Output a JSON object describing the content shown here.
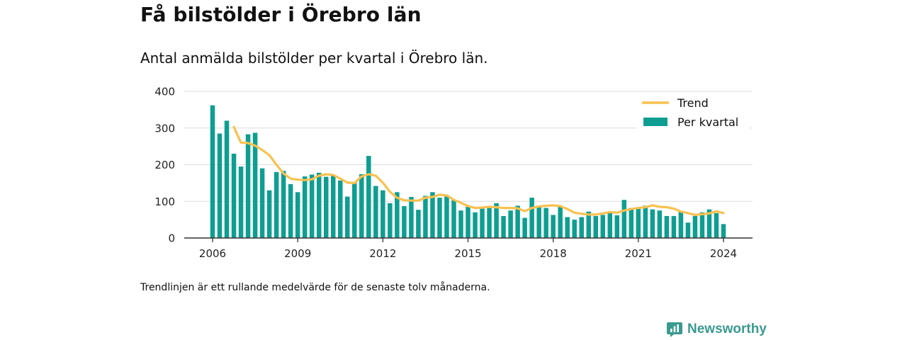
{
  "header": {
    "title": "Få bilstölder i Örebro län",
    "subtitle": "Antal anmälda bilstölder per kvartal i Örebro län."
  },
  "footnote": "Trendlinjen är ett rullande medelvärde för de senaste tolv månaderna.",
  "brand": {
    "name": "Newsworthy",
    "icon": "newsworthy-logo-icon"
  },
  "colors": {
    "bars": "#0e9e91",
    "trend": "#f8c150",
    "grid": "#dcdcdc",
    "axis": "#333333"
  },
  "chart_data": {
    "type": "bar",
    "grid": true,
    "legend_placement": "top-right",
    "legend": [
      {
        "label": "Trend",
        "kind": "line"
      },
      {
        "label": "Per kvartal",
        "kind": "bar"
      }
    ],
    "y_ticks": [
      0,
      100,
      200,
      300,
      400
    ],
    "ylim": [
      0,
      400
    ],
    "x_ticks": [
      "2006",
      "2009",
      "2012",
      "2015",
      "2018",
      "2021",
      "2024"
    ],
    "start_year": 2006,
    "series": [
      {
        "name": "Per kvartal",
        "type": "bar",
        "values": [
          362,
          285,
          320,
          230,
          195,
          283,
          287,
          190,
          130,
          180,
          183,
          147,
          125,
          168,
          173,
          178,
          167,
          170,
          157,
          113,
          150,
          174,
          224,
          142,
          130,
          95,
          125,
          87,
          112,
          77,
          115,
          125,
          110,
          117,
          103,
          75,
          85,
          70,
          80,
          82,
          95,
          60,
          75,
          88,
          55,
          110,
          88,
          82,
          63,
          88,
          57,
          50,
          57,
          72,
          60,
          63,
          72,
          62,
          104,
          82,
          80,
          88,
          78,
          75,
          60,
          60,
          72,
          42,
          60,
          70,
          78,
          68,
          38
        ]
      },
      {
        "name": "Trend",
        "type": "line",
        "values": [
          null,
          null,
          null,
          303,
          260,
          259,
          252,
          240,
          226,
          200,
          176,
          162,
          159,
          158,
          160,
          170,
          174,
          172,
          162,
          151,
          150,
          168,
          174,
          170,
          151,
          126,
          110,
          103,
          102,
          102,
          110,
          112,
          118,
          116,
          104,
          96,
          87,
          82,
          83,
          85,
          84,
          82,
          82,
          81,
          73,
          82,
          86,
          88,
          89,
          87,
          79,
          69,
          66,
          64,
          64,
          67,
          71,
          69,
          75,
          79,
          82,
          84,
          89,
          85,
          84,
          80,
          72,
          68,
          63,
          65,
          67,
          73,
          68
        ]
      }
    ]
  }
}
